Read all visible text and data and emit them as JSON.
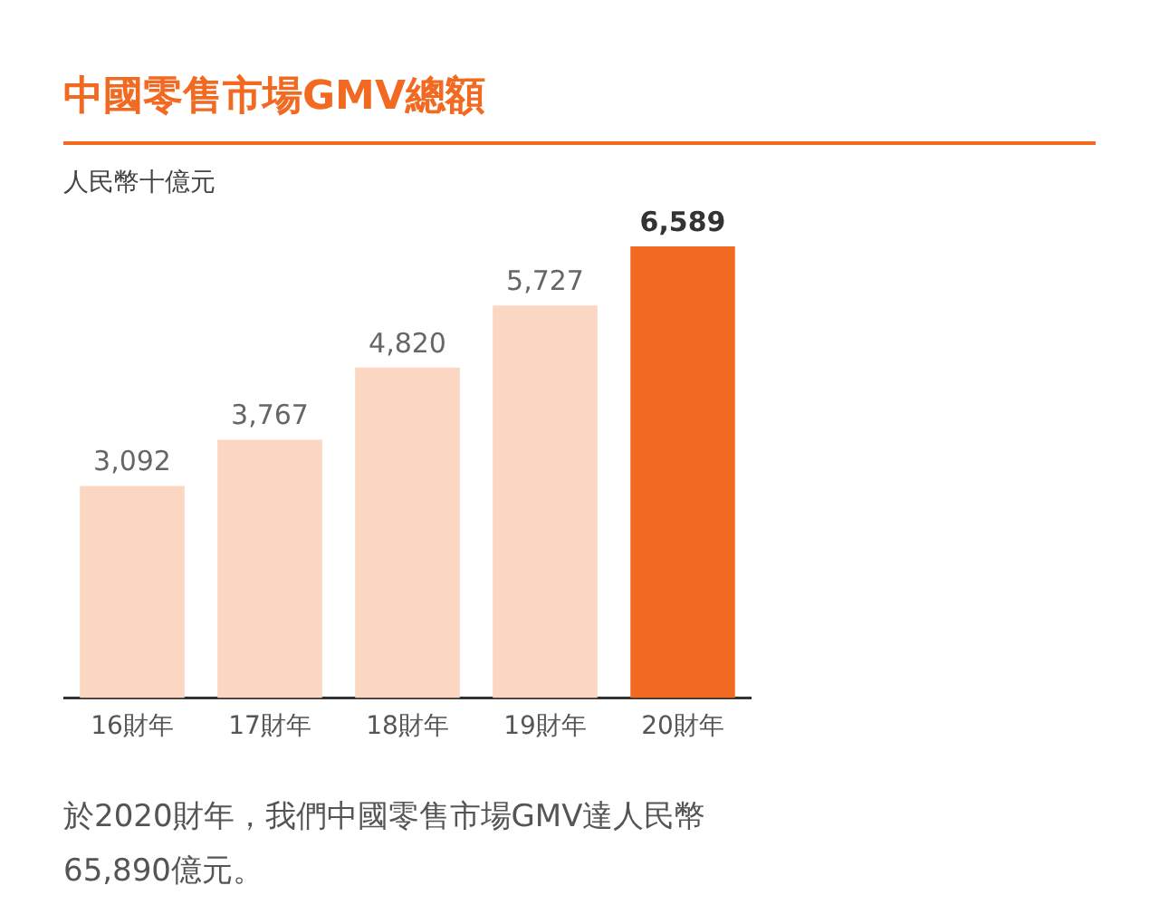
{
  "chart_data": {
    "type": "bar",
    "title": "中國零售市場GMV總額",
    "subtitle": "人民幣十億元",
    "categories": [
      "16財年",
      "17財年",
      "18財年",
      "19財年",
      "20財年"
    ],
    "values": [
      3092,
      3767,
      4820,
      5727,
      6589
    ],
    "value_labels": [
      "3,092",
      "3,767",
      "4,820",
      "5,727",
      "6,589"
    ],
    "colors": [
      "#fbd6c0",
      "#fbd6c0",
      "#fbd6c0",
      "#fbd6c0",
      "#f26a21"
    ],
    "annotations": [
      "於2020財年，我們中國零售市場GMV達人民幣65,890億元。"
    ],
    "grid": false,
    "legend": false
  }
}
